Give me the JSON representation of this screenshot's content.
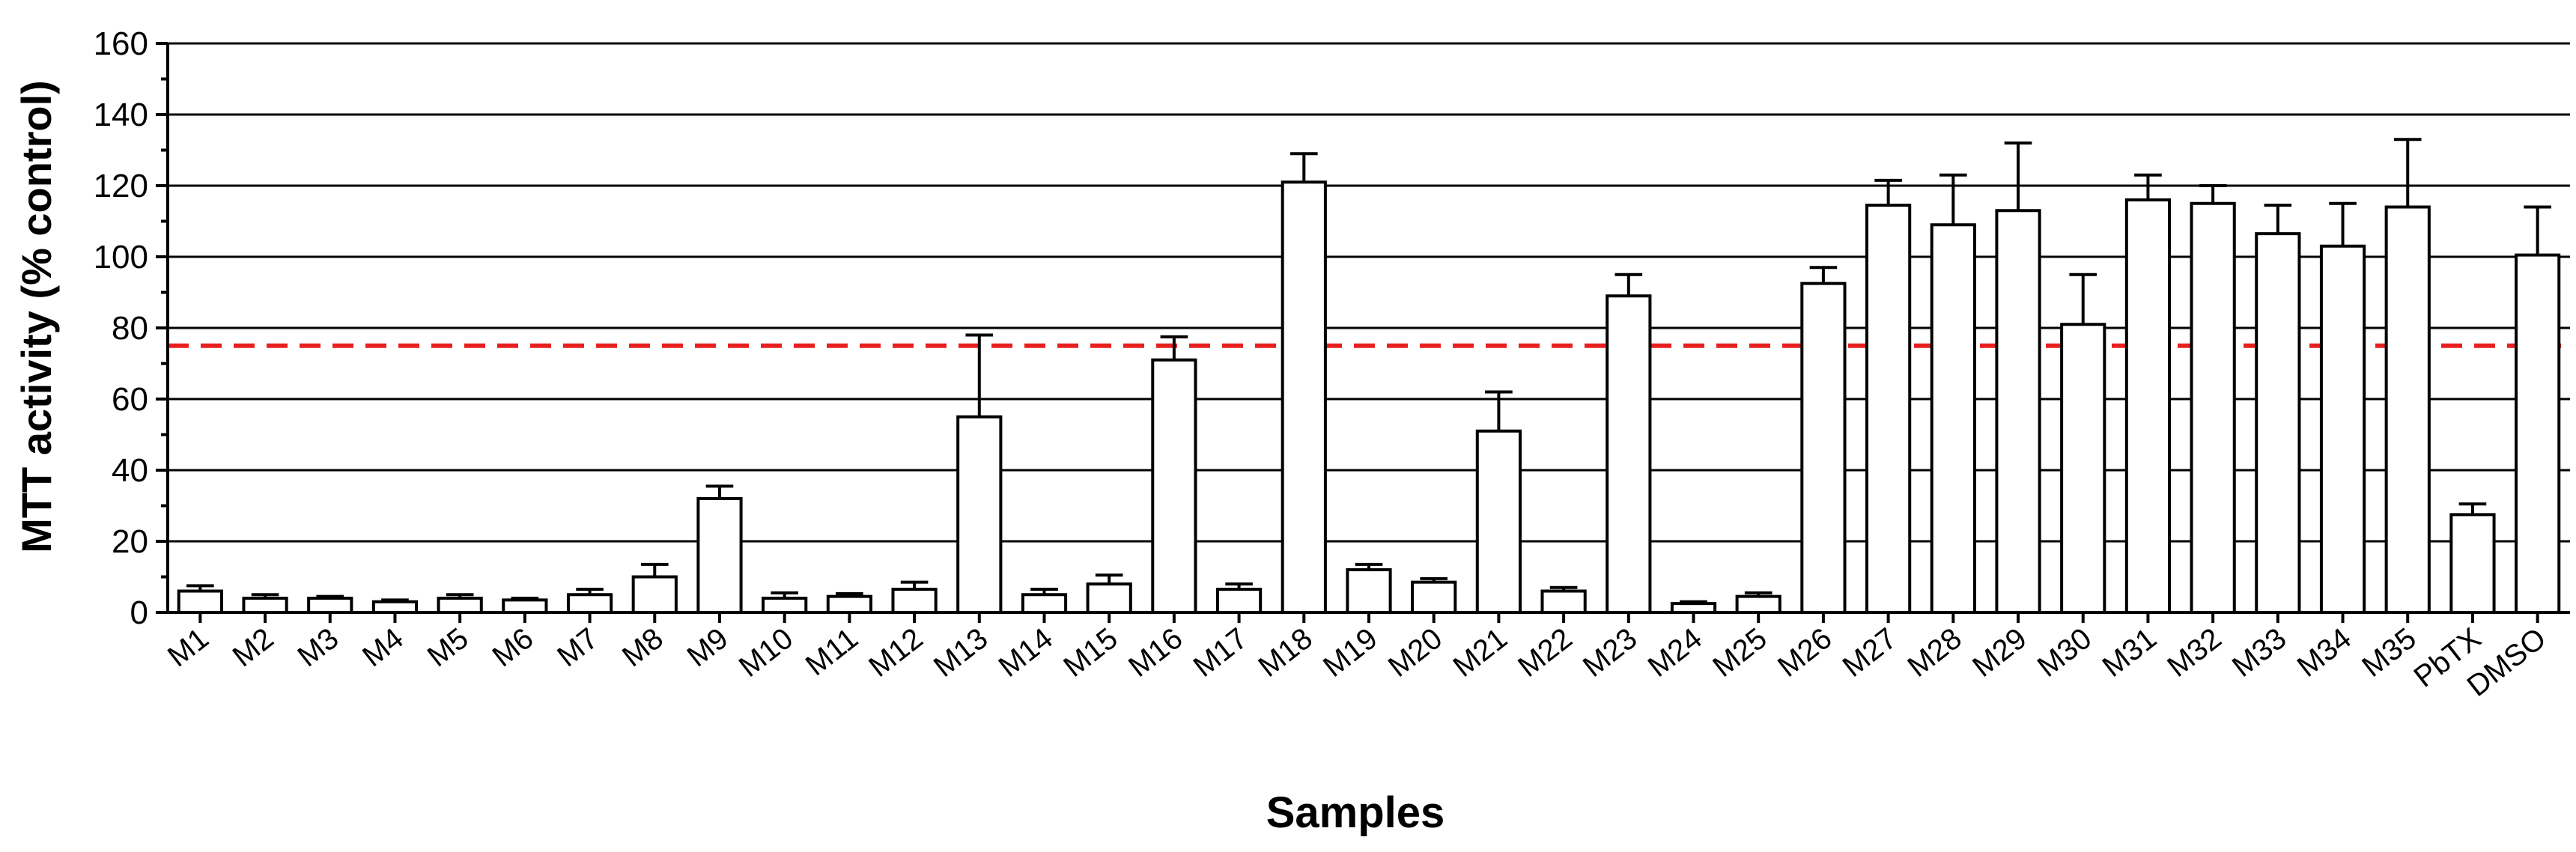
{
  "chart_data": {
    "type": "bar",
    "title": "",
    "xlabel": "Samples",
    "ylabel": "MTT activity (% control)",
    "ylim": [
      0,
      160
    ],
    "yticks": [
      0,
      20,
      40,
      60,
      80,
      100,
      120,
      140,
      160
    ],
    "grid": "horizontal",
    "threshold": {
      "value": 75,
      "color": "#e8201f",
      "style": "dashed"
    },
    "bar_fill": "#ffffff",
    "bar_stroke": "#000000",
    "categories": [
      "M1",
      "M2",
      "M3",
      "M4",
      "M5",
      "M6",
      "M7",
      "M8",
      "M9",
      "M10",
      "M11",
      "M12",
      "M13",
      "M14",
      "M15",
      "M16",
      "M17",
      "M18",
      "M19",
      "M20",
      "M21",
      "M22",
      "M23",
      "M24",
      "M25",
      "M26",
      "M27",
      "M28",
      "M29",
      "M30",
      "M31",
      "M32",
      "M33",
      "M34",
      "M35",
      "PbTX",
      "DMSO"
    ],
    "values": [
      6,
      4,
      4,
      3,
      4,
      3.5,
      5,
      10,
      32,
      4,
      4.5,
      6.5,
      55,
      5,
      8,
      71,
      6.5,
      121,
      12,
      8.5,
      51,
      6,
      89,
      2.5,
      4.5,
      92.5,
      114.5,
      109,
      113,
      81,
      116,
      115,
      106.5,
      103,
      114,
      27.5,
      100.5
    ],
    "errors": [
      1.5,
      1,
      0.5,
      0.5,
      1,
      0.5,
      1.5,
      3.5,
      3.5,
      1.5,
      0.8,
      2,
      23,
      1.5,
      2.5,
      6.5,
      1.5,
      8,
      1.5,
      1,
      11,
      1,
      6,
      0.5,
      1,
      4.5,
      7,
      14,
      19,
      14,
      7,
      5,
      8,
      12,
      19,
      3,
      13.5
    ]
  }
}
